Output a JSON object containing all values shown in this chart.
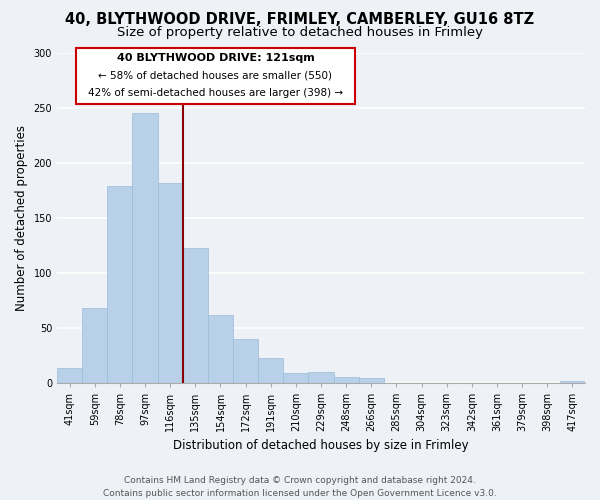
{
  "title": "40, BLYTHWOOD DRIVE, FRIMLEY, CAMBERLEY, GU16 8TZ",
  "subtitle": "Size of property relative to detached houses in Frimley",
  "xlabel": "Distribution of detached houses by size in Frimley",
  "ylabel": "Number of detached properties",
  "bar_labels": [
    "41sqm",
    "59sqm",
    "78sqm",
    "97sqm",
    "116sqm",
    "135sqm",
    "154sqm",
    "172sqm",
    "191sqm",
    "210sqm",
    "229sqm",
    "248sqm",
    "266sqm",
    "285sqm",
    "304sqm",
    "323sqm",
    "342sqm",
    "361sqm",
    "379sqm",
    "398sqm",
    "417sqm"
  ],
  "bar_values": [
    13,
    68,
    179,
    246,
    182,
    123,
    62,
    40,
    23,
    9,
    10,
    5,
    4,
    0,
    0,
    0,
    0,
    0,
    0,
    0,
    2
  ],
  "bar_color": "#b8d0e8",
  "bar_edge_color": "#9bbcd8",
  "vline_color": "#8b0000",
  "annotation_text_line1": "40 BLYTHWOOD DRIVE: 121sqm",
  "annotation_text_line2": "← 58% of detached houses are smaller (550)",
  "annotation_text_line3": "42% of semi-detached houses are larger (398) →",
  "box_edge_color": "#cc0000",
  "ylim": [
    0,
    300
  ],
  "yticks": [
    0,
    50,
    100,
    150,
    200,
    250,
    300
  ],
  "footer_line1": "Contains HM Land Registry data © Crown copyright and database right 2024.",
  "footer_line2": "Contains public sector information licensed under the Open Government Licence v3.0.",
  "background_color": "#eef2f7",
  "grid_color": "#ffffff",
  "title_fontsize": 10.5,
  "subtitle_fontsize": 9.5,
  "ylabel_fontsize": 8.5,
  "xlabel_fontsize": 8.5,
  "tick_fontsize": 7,
  "footer_fontsize": 6.5,
  "vline_index": 4.5
}
